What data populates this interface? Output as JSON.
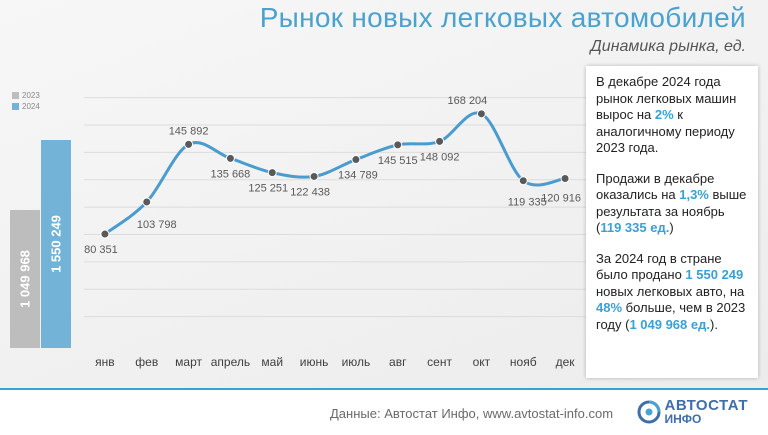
{
  "header": {
    "title": "Рынок новых легковых автомобилей",
    "subtitle": "Динамика рынка, ед."
  },
  "annual": {
    "legend": [
      "2023",
      "2024"
    ],
    "colors": [
      "#bdbdbd",
      "#74b3d8"
    ],
    "labels": [
      "1 049 968",
      "1 550 249"
    ]
  },
  "chart_data": {
    "type": "line",
    "categories": [
      "янв",
      "фев",
      "март",
      "апрель",
      "май",
      "июнь",
      "июль",
      "авг",
      "сент",
      "окт",
      "нояб",
      "дек"
    ],
    "series": [
      {
        "values": [
          80351,
          103798,
          145892,
          135668,
          125251,
          122438,
          134789,
          145515,
          148092,
          168204,
          119335,
          120916
        ]
      }
    ],
    "data_labels": [
      "80 351",
      "103 798",
      "145 892",
      "135 668",
      "125 251",
      "122 438",
      "134 789",
      "145 515",
      "148 092",
      "168 204",
      "119 335",
      "120 916"
    ],
    "ylim": [
      0,
      190000
    ],
    "grid": true,
    "line_color": "#4a9ccf",
    "marker_color": "#595959",
    "title": "",
    "xlabel": "",
    "ylabel": ""
  },
  "info": {
    "p1": [
      "В декабре 2024 года рынок легковых машин вырос на ",
      "2%",
      " к аналогичному периоду 2023 года."
    ],
    "p2": [
      "Продажи в декабре оказались на ",
      "1,3%",
      " выше результата за ноябрь (",
      "119 335 ед.",
      ")"
    ],
    "p3": [
      "За 2024 год в стране было продано ",
      "1 550 249",
      " новых легковых авто, на ",
      "48%",
      " больше, чем в 2023 году (",
      "1 049 968 ед.",
      ")."
    ]
  },
  "footer": {
    "source": "Данные: Автостат Инфо, www.avtostat-info.com",
    "logo_line1": "АВТОСТАТ",
    "logo_line2": "ИНФО",
    "logo_icon": "avtostat-logo-icon"
  }
}
